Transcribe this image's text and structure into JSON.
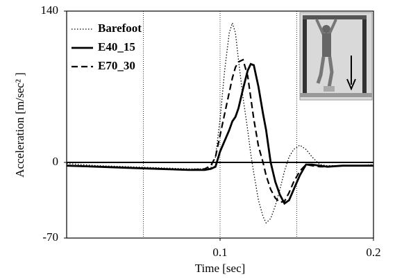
{
  "chart_data": {
    "type": "line",
    "xlabel": "Time [sec]",
    "ylabel": "Acceleration [m/sec² ]",
    "xlim": [
      0,
      0.2
    ],
    "ylim": [
      -70,
      140
    ],
    "xticks": [
      0.1,
      0.2
    ],
    "yticks": [
      -70,
      0,
      140
    ],
    "xgrid": [
      0.05,
      0.1,
      0.15
    ],
    "zero_line": true,
    "legend": "upper left",
    "x": [
      0,
      0.02,
      0.04,
      0.06,
      0.08,
      0.09,
      0.094,
      0.097,
      0.1,
      0.103,
      0.106,
      0.108,
      0.11,
      0.112,
      0.115,
      0.118,
      0.12,
      0.122,
      0.125,
      0.128,
      0.13,
      0.133,
      0.136,
      0.139,
      0.142,
      0.145,
      0.148,
      0.152,
      0.156,
      0.16,
      0.165,
      0.17,
      0.18,
      0.19,
      0.2
    ],
    "series": [
      {
        "name": "Barefoot",
        "color": "#000000",
        "dash": "dotted",
        "values": [
          -1,
          -3,
          -4,
          -5,
          -6,
          -6,
          -5,
          5,
          40,
          85,
          120,
          129,
          120,
          95,
          60,
          30,
          8,
          -10,
          -35,
          -50,
          -56,
          -52,
          -40,
          -25,
          -8,
          5,
          12,
          16,
          12,
          5,
          -2,
          -3,
          -3,
          -3,
          -2
        ]
      },
      {
        "name": "E40_15",
        "color": "#000000",
        "dash": "solid",
        "values": [
          -3,
          -4,
          -5,
          -6,
          -7,
          -7,
          -6,
          -4,
          10,
          20,
          30,
          38,
          42,
          50,
          68,
          85,
          91,
          90,
          70,
          45,
          30,
          0,
          -18,
          -30,
          -38,
          -35,
          -25,
          -12,
          -2,
          -2,
          -3,
          -4,
          -3,
          -3,
          -3
        ]
      },
      {
        "name": "E70_30",
        "color": "#000000",
        "dash": "dashed",
        "values": [
          -3,
          -4,
          -5,
          -6,
          -7,
          -6,
          -3,
          5,
          25,
          45,
          65,
          78,
          88,
          93,
          95,
          80,
          60,
          40,
          15,
          0,
          -12,
          -25,
          -33,
          -37,
          -36,
          -28,
          -18,
          -8,
          -2,
          -3,
          -4,
          -4,
          -3,
          -3,
          -3
        ]
      }
    ]
  }
}
